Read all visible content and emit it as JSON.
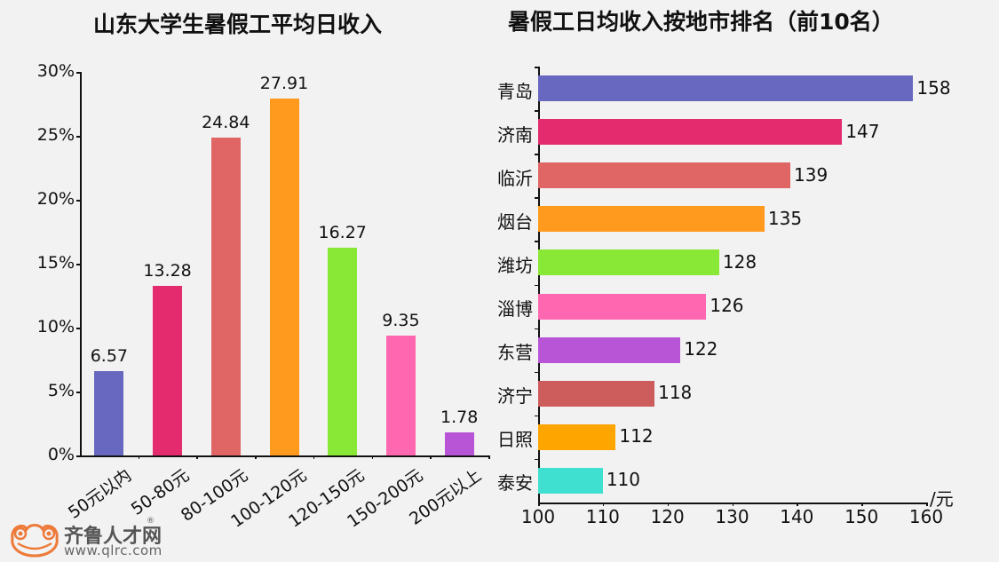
{
  "chart_data": [
    {
      "type": "bar",
      "title": "山东大学生暑假工平均日收入",
      "categories": [
        "50元以内",
        "50-80元",
        "80-100元",
        "100-120元",
        "120-150元",
        "150-200元",
        "200元以上"
      ],
      "values": [
        6.57,
        13.28,
        24.84,
        27.91,
        16.27,
        9.35,
        1.78
      ],
      "value_labels": [
        "6.57",
        "13.28",
        "24.84",
        "27.91",
        "16.27",
        "9.35",
        "1.78"
      ],
      "colors": [
        "#6868c0",
        "#e32b6d",
        "#e06666",
        "#ff9a1e",
        "#88e835",
        "#ff68b0",
        "#b855d6"
      ],
      "yticks": [
        "0%",
        "5%",
        "10%",
        "15%",
        "20%",
        "25%",
        "30%"
      ],
      "ylim": [
        0,
        30
      ],
      "xlabel": "",
      "ylabel": "",
      "grid": false
    },
    {
      "type": "bar",
      "orientation": "horizontal",
      "title": "暑假工日均收入按地市排名（前10名）",
      "categories": [
        "青岛",
        "济南",
        "临沂",
        "烟台",
        "潍坊",
        "淄博",
        "东营",
        "济宁",
        "日照",
        "泰安"
      ],
      "values": [
        158,
        147,
        139,
        135,
        128,
        126,
        122,
        118,
        112,
        110
      ],
      "value_labels": [
        "158",
        "147",
        "139",
        "135",
        "128",
        "126",
        "122",
        "118",
        "112",
        "110"
      ],
      "colors": [
        "#6868c0",
        "#e32b6d",
        "#e06666",
        "#ff9a1e",
        "#88e835",
        "#ff68b0",
        "#b855d6",
        "#cd5c5c",
        "#ffa500",
        "#40e0d0"
      ],
      "xticks": [
        "100",
        "110",
        "120",
        "130",
        "140",
        "150",
        "160"
      ],
      "xlim": [
        100,
        160
      ],
      "xlabel": "/元",
      "grid": false
    }
  ],
  "logo": {
    "name": "齐鲁人才网",
    "reg": "®",
    "url": "www.qlrc.com"
  }
}
